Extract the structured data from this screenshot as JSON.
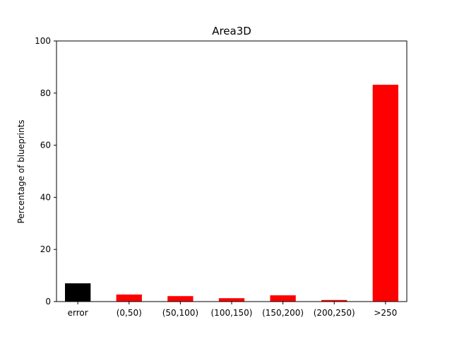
{
  "chart_data": {
    "type": "bar",
    "title": "Area3D",
    "xlabel": "",
    "ylabel": "Percentage of blueprints",
    "categories": [
      "error",
      "(0,50)",
      "(50,100)",
      "(100,150)",
      "(150,200)",
      "(200,250)",
      ">250"
    ],
    "values": [
      7.0,
      2.7,
      2.1,
      1.3,
      2.4,
      0.6,
      83.2
    ],
    "bar_colors": [
      "#000000",
      "#ff0000",
      "#ff0000",
      "#ff0000",
      "#ff0000",
      "#ff0000",
      "#ff0000"
    ],
    "ylim": [
      0,
      100
    ],
    "yticks": [
      0,
      20,
      40,
      60,
      80,
      100
    ],
    "grid": false
  }
}
